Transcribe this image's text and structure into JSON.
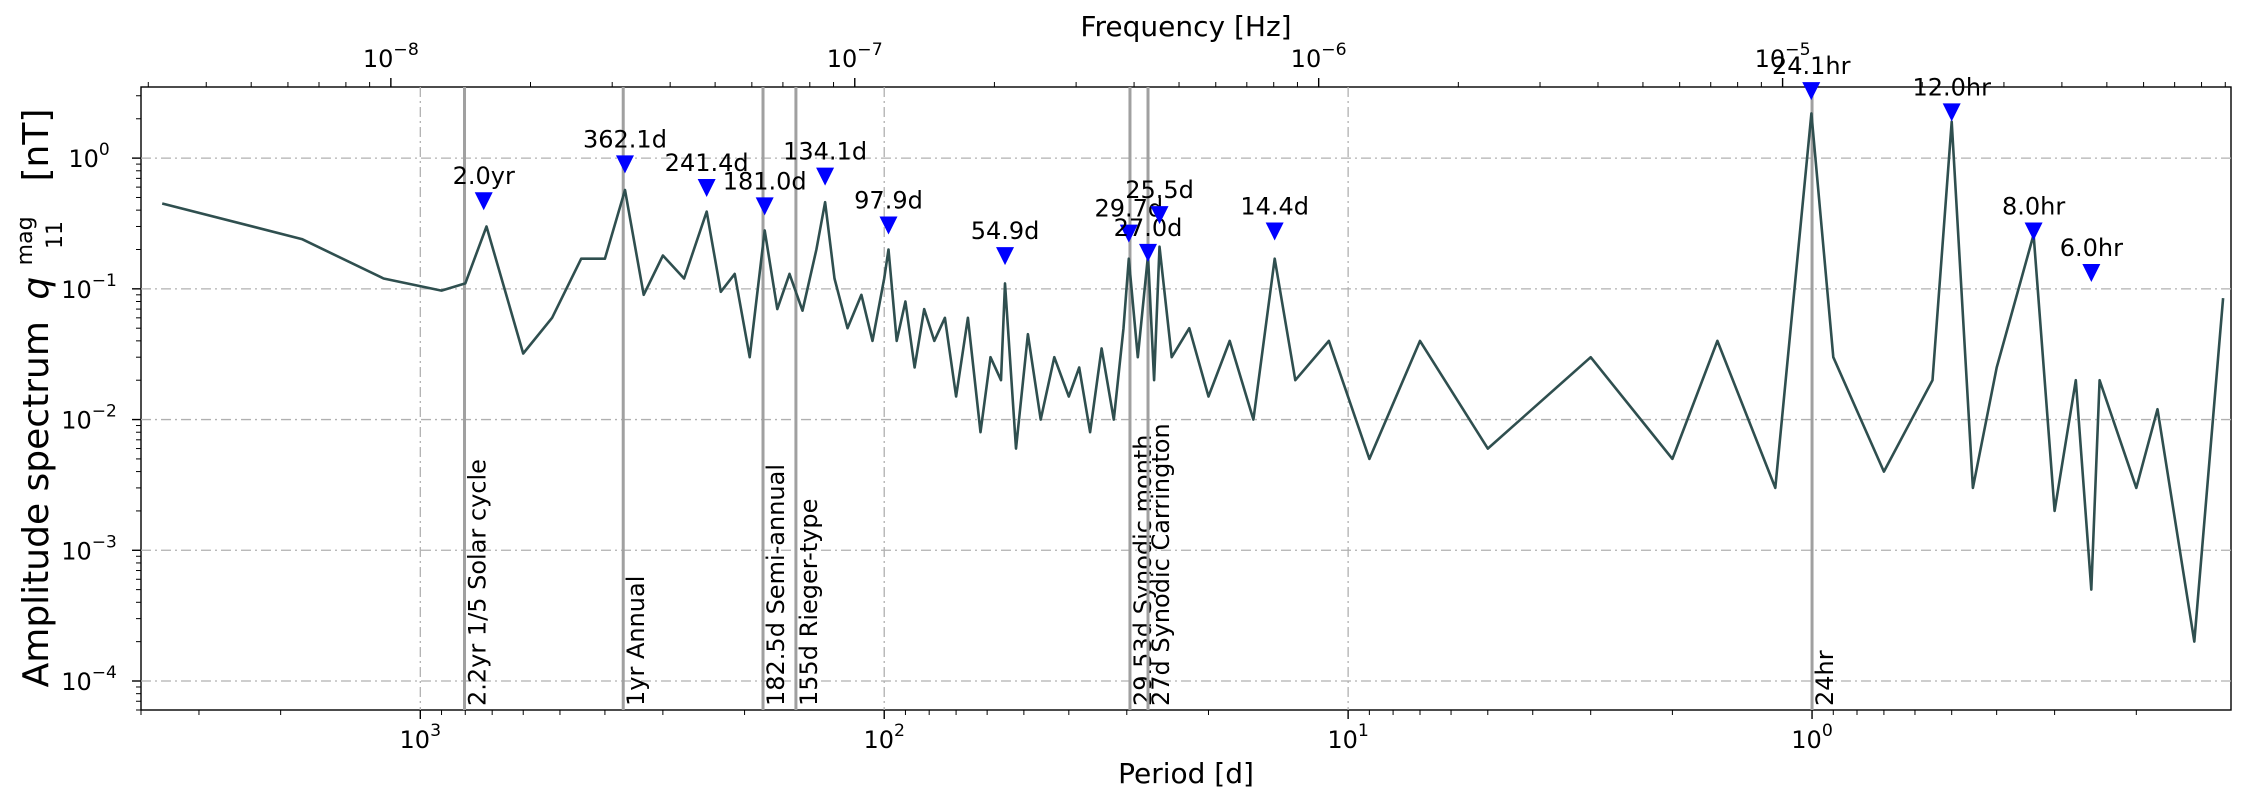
{
  "chart_data": {
    "type": "line",
    "x_axis": {
      "label": "Period [d]",
      "scale": "log",
      "inverted": true,
      "range": [
        4000,
        0.125
      ],
      "tick_values": [
        1000,
        100,
        10,
        1
      ],
      "tick_labels": [
        "10",
        "10",
        "10",
        "10"
      ],
      "tick_exponents": [
        "3",
        "2",
        "1",
        "0"
      ]
    },
    "x2_axis": {
      "label": "Frequency [Hz]",
      "scale": "log",
      "tick_values": [
        1e-08,
        1e-07,
        1e-06,
        1e-05
      ],
      "tick_labels": [
        "10",
        "10",
        "10",
        "10"
      ],
      "tick_exponents": [
        "−8",
        "−7",
        "−6",
        "−5"
      ]
    },
    "y_axis": {
      "label": "Amplitude spectrum",
      "label_symbol": "q",
      "label_sub": "11",
      "label_sup": "mag",
      "label_unit": "[nT]",
      "scale": "log",
      "range": [
        6e-05,
        3.5
      ],
      "tick_values": [
        0.0001,
        0.001,
        0.01,
        0.1,
        1
      ],
      "tick_labels": [
        "10",
        "10",
        "10",
        "10",
        "10"
      ],
      "tick_exponents": [
        "−4",
        "−3",
        "−2",
        "−1",
        "0"
      ]
    },
    "grid": true,
    "line_color": "#2f4f4f",
    "marker_color": "#0000ff",
    "reference_color": "#a0a0a0",
    "series": [
      {
        "x": [
          3600,
          1800,
          1200,
          900,
          800,
          720,
          600,
          520,
          450,
          400,
          362.1,
          330,
          300,
          270,
          241.4,
          225,
          210,
          195,
          181.0,
          170,
          160,
          150,
          140,
          134.1,
          128,
          120,
          112,
          106,
          100,
          97.9,
          94,
          90,
          86,
          82,
          78,
          74,
          70,
          66,
          62,
          59,
          56,
          54.9,
          52,
          49,
          46,
          43,
          40,
          38,
          36,
          34,
          32,
          30.5,
          29.7,
          28.4,
          27.0,
          26.2,
          25.5,
          24,
          22,
          20,
          18,
          16,
          14.4,
          13,
          11,
          9,
          7,
          5,
          3,
          2,
          1.6,
          1.2,
          1.003,
          0.9,
          0.7,
          0.55,
          0.5,
          0.45,
          0.4,
          0.333,
          0.3,
          0.27,
          0.25,
          0.24,
          0.2,
          0.18,
          0.15,
          0.13
        ],
        "y": [
          0.45,
          0.24,
          0.12,
          0.097,
          0.11,
          0.3,
          0.032,
          0.06,
          0.17,
          0.17,
          0.57,
          0.09,
          0.18,
          0.12,
          0.39,
          0.095,
          0.13,
          0.03,
          0.28,
          0.07,
          0.13,
          0.068,
          0.2,
          0.46,
          0.12,
          0.05,
          0.09,
          0.04,
          0.12,
          0.2,
          0.04,
          0.08,
          0.025,
          0.07,
          0.04,
          0.06,
          0.015,
          0.06,
          0.008,
          0.03,
          0.02,
          0.11,
          0.006,
          0.045,
          0.01,
          0.03,
          0.015,
          0.025,
          0.008,
          0.035,
          0.01,
          0.05,
          0.17,
          0.03,
          0.18,
          0.02,
          0.21,
          0.03,
          0.05,
          0.015,
          0.04,
          0.01,
          0.17,
          0.02,
          0.04,
          0.005,
          0.04,
          0.006,
          0.03,
          0.005,
          0.04,
          0.003,
          2.2,
          0.03,
          0.004,
          0.02,
          1.9,
          0.003,
          0.025,
          0.26,
          0.002,
          0.02,
          0.0005,
          0.02,
          0.003,
          0.012,
          0.0002,
          0.085
        ]
      }
    ],
    "peaks": [
      {
        "label": "2.0yr",
        "period": 730,
        "value": 0.46
      },
      {
        "label": "362.1d",
        "period": 362.1,
        "value": 0.88
      },
      {
        "label": "241.4d",
        "period": 241.4,
        "value": 0.58
      },
      {
        "label": "181.0d",
        "period": 181.0,
        "value": 0.42
      },
      {
        "label": "134.1d",
        "period": 134.1,
        "value": 0.71
      },
      {
        "label": "97.9d",
        "period": 97.9,
        "value": 0.3
      },
      {
        "label": "54.9d",
        "period": 54.9,
        "value": 0.175
      },
      {
        "label": "29.7d",
        "period": 29.7,
        "value": 0.26
      },
      {
        "label": "27.0d",
        "period": 27.0,
        "value": 0.185
      },
      {
        "label": "25.5d",
        "period": 25.5,
        "value": 0.36
      },
      {
        "label": "14.4d",
        "period": 14.4,
        "value": 0.27
      },
      {
        "label": "24.1hr",
        "period": 1.004,
        "value": 3.2
      },
      {
        "label": "12.0hr",
        "period": 0.5,
        "value": 2.2
      },
      {
        "label": "8.0hr",
        "period": 0.333,
        "value": 0.27
      },
      {
        "label": "6.0hr",
        "period": 0.25,
        "value": 0.13
      }
    ],
    "reference_lines": [
      {
        "label": "2.2yr 1/5 Solar cycle",
        "period": 803
      },
      {
        "label": "1yr Annual",
        "period": 365.25
      },
      {
        "label": "182.5d Semi-annual",
        "period": 182.5
      },
      {
        "label": "155d Rieger-type",
        "period": 155
      },
      {
        "label": "29.53d Synodic month",
        "period": 29.53
      },
      {
        "label": "27d Synodic Carrington",
        "period": 27
      },
      {
        "label": "24hr",
        "period": 1
      }
    ]
  }
}
